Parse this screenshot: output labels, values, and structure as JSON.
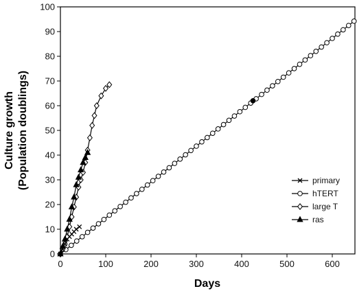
{
  "chart_data": {
    "type": "line",
    "title": "",
    "xlabel": "Days",
    "ylabel_line1": "Culture growth",
    "ylabel_line2": "(Population doublings)",
    "xlim": [
      0,
      650
    ],
    "ylim": [
      0,
      100
    ],
    "x_ticks": [
      0,
      100,
      200,
      300,
      400,
      500,
      600
    ],
    "y_ticks": [
      0,
      10,
      20,
      30,
      40,
      50,
      60,
      70,
      80,
      90,
      100
    ],
    "grid": false,
    "legend_position": "right",
    "series": [
      {
        "name": "primary",
        "marker": "x",
        "x": [
          0,
          5,
          10,
          15,
          20,
          25,
          30,
          35,
          42
        ],
        "y": [
          0,
          2,
          4,
          6,
          7,
          8,
          9,
          10,
          11
        ]
      },
      {
        "name": "hTERT",
        "marker": "open-circle",
        "x": [
          0,
          650
        ],
        "y": [
          0,
          94.5
        ],
        "marker_step": 12,
        "highlight": {
          "x": 425,
          "y": 62,
          "filled": true
        }
      },
      {
        "name": "large T",
        "marker": "open-diamond",
        "x": [
          0,
          5,
          10,
          15,
          20,
          25,
          30,
          35,
          40,
          45,
          50,
          55,
          60,
          65,
          70,
          75,
          80,
          90,
          100,
          108
        ],
        "y": [
          0,
          2,
          4,
          7,
          11,
          15,
          19,
          23,
          27,
          30,
          33,
          37,
          42,
          47,
          52,
          56,
          60,
          64,
          67,
          68.5
        ]
      },
      {
        "name": "ras",
        "marker": "filled-triangle",
        "x": [
          0,
          5,
          10,
          15,
          20,
          25,
          30,
          35,
          40,
          45,
          50,
          55,
          60
        ],
        "y": [
          0,
          3,
          6,
          10,
          14,
          19,
          23,
          28,
          31,
          34,
          37,
          39,
          41
        ]
      }
    ]
  }
}
